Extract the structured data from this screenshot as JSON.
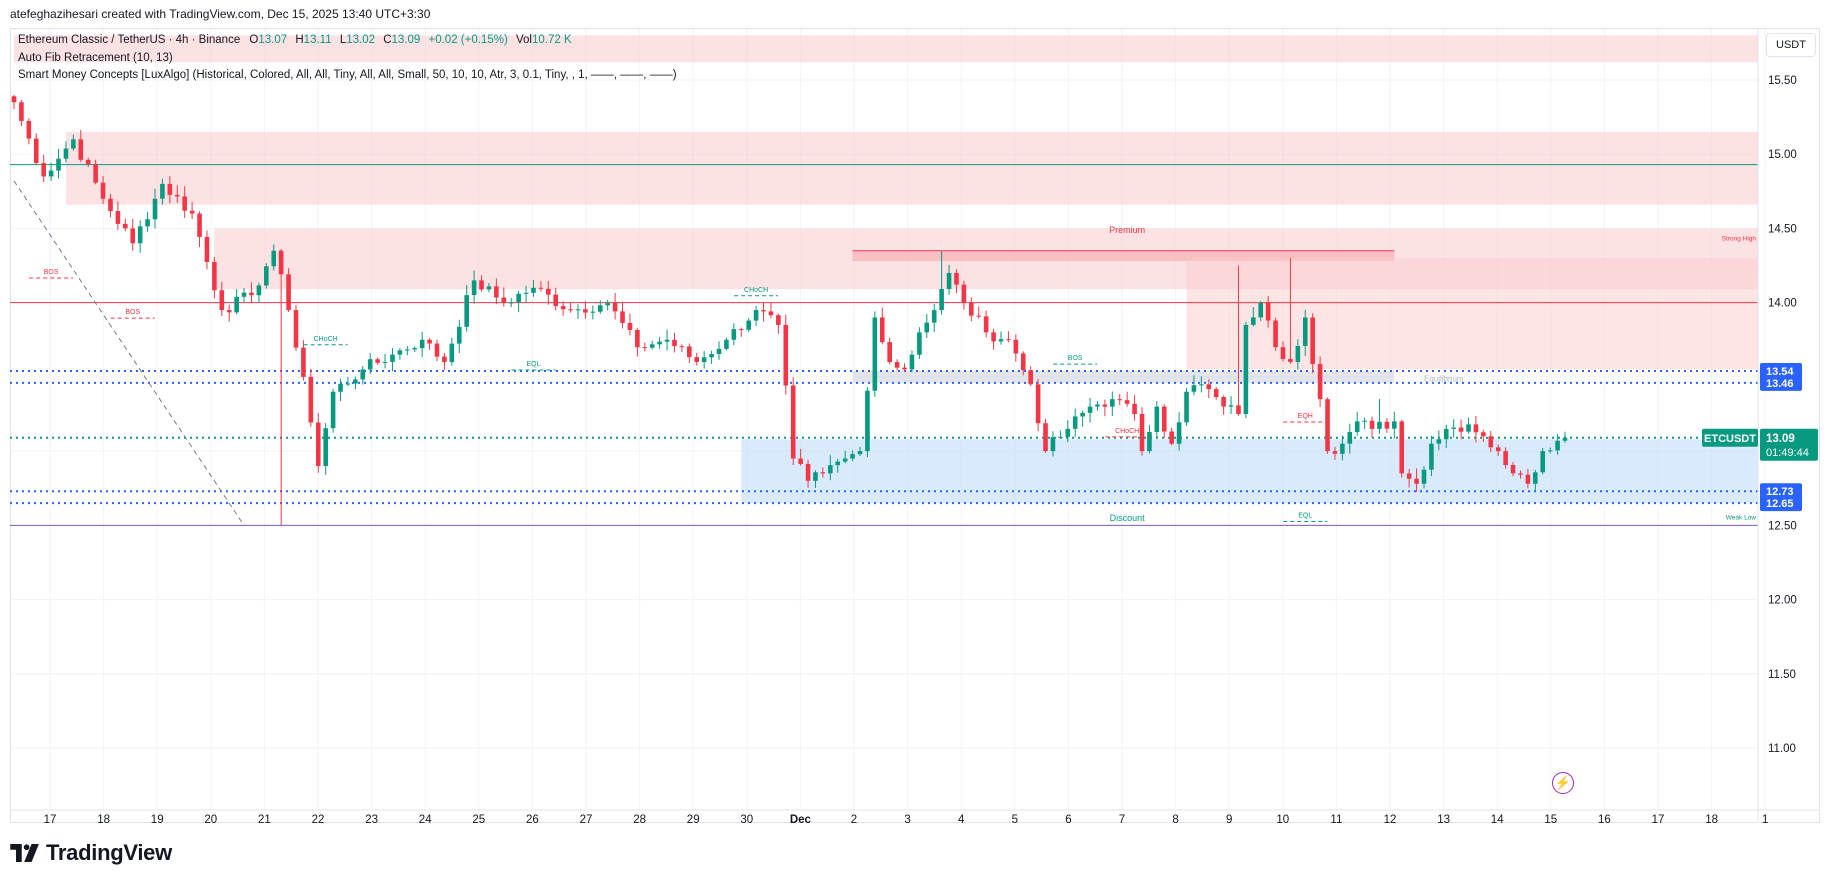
{
  "caption": "atefeghazihesari created with TradingView.com, Dec 15, 2025 13:40 UTC+3:30",
  "legend": {
    "symbol_line": "Ethereum Classic / TetherUS · 4h · Binance",
    "ohlc": {
      "O": "13.07",
      "H": "13.11",
      "L": "13.02",
      "C": "13.09",
      "change": "+0.02 (+0.15%)",
      "vol": "10.72 K"
    },
    "indicator_1": "Auto Fib Retracement (10, 13)",
    "indicator_2": "Smart Money Concepts [LuxAlgo] (Historical, Colored, All, All, Tiny, All, All, Small, 50, 10, 10, Atr, 3, 0.1, Tiny, , 1, ——, ——, ——)"
  },
  "currency": "USDT",
  "brand": "TradingView",
  "colors": {
    "up": "#089981",
    "down": "#f23645",
    "premium_zone": "#fccbcd",
    "discount_zone": "#bbd9fb",
    "grid": "#f0f3fa",
    "dotted_level": "#2962ff"
  },
  "price_badges": [
    {
      "label": "13.54",
      "color": "#2962ff"
    },
    {
      "label": "13.46",
      "color": "#2962ff"
    },
    {
      "label": "12.73",
      "color": "#2962ff"
    },
    {
      "label": "12.65",
      "color": "#2962ff"
    }
  ],
  "last_price": {
    "symbol": "ETCUSDT",
    "price": "13.09",
    "countdown": "01:49:44"
  },
  "annotations": {
    "premium": "Premium",
    "discount": "Discount",
    "equilibrium": "Equilibrium",
    "strong_high": "Strong High",
    "weak_low": "Weak Low",
    "bos": "BOS",
    "choch": "CHoCH",
    "eql": "EQL",
    "eqh": "EQH"
  },
  "chart_data": {
    "type": "candlestick",
    "timeframe": "4h",
    "ylim": [
      10.65,
      15.85
    ],
    "yticks": [
      11.0,
      11.5,
      12.0,
      12.5,
      13.0,
      13.5,
      14.0,
      14.5,
      15.0,
      15.5
    ],
    "xticks": [
      "17",
      "18",
      "19",
      "20",
      "21",
      "22",
      "23",
      "24",
      "25",
      "26",
      "27",
      "28",
      "29",
      "30",
      "Dec",
      "2",
      "3",
      "4",
      "5",
      "6",
      "7",
      "8",
      "9",
      "10",
      "11",
      "12",
      "13",
      "14",
      "15",
      "16",
      "17",
      "18",
      "1"
    ],
    "anchors": [
      {
        "t": 0,
        "p": 15.35
      },
      {
        "t": 4,
        "p": 14.85
      },
      {
        "t": 8,
        "p": 15.1
      },
      {
        "t": 12,
        "p": 14.7
      },
      {
        "t": 16,
        "p": 14.4
      },
      {
        "t": 20,
        "p": 14.8
      },
      {
        "t": 24,
        "p": 14.6
      },
      {
        "t": 28,
        "p": 13.95
      },
      {
        "t": 32,
        "p": 14.05
      },
      {
        "t": 35,
        "p": 14.35
      },
      {
        "t": 37,
        "p": 13.95
      },
      {
        "t": 39,
        "p": 13.5
      },
      {
        "t": 41,
        "p": 12.9
      },
      {
        "t": 43,
        "p": 13.4
      },
      {
        "t": 47,
        "p": 13.55
      },
      {
        "t": 51,
        "p": 13.65
      },
      {
        "t": 55,
        "p": 13.75
      },
      {
        "t": 58,
        "p": 13.6
      },
      {
        "t": 62,
        "p": 14.15
      },
      {
        "t": 66,
        "p": 14.0
      },
      {
        "t": 70,
        "p": 14.1
      },
      {
        "t": 75,
        "p": 13.95
      },
      {
        "t": 80,
        "p": 14.0
      },
      {
        "t": 84,
        "p": 13.7
      },
      {
        "t": 88,
        "p": 13.75
      },
      {
        "t": 92,
        "p": 13.6
      },
      {
        "t": 96,
        "p": 13.75
      },
      {
        "t": 100,
        "p": 13.95
      },
      {
        "t": 103,
        "p": 13.85
      },
      {
        "t": 105,
        "p": 12.95
      },
      {
        "t": 107,
        "p": 12.8
      },
      {
        "t": 109,
        "p": 12.85
      },
      {
        "t": 112,
        "p": 12.95
      },
      {
        "t": 114,
        "p": 13.0
      },
      {
        "t": 116,
        "p": 13.9
      },
      {
        "t": 118,
        "p": 13.6
      },
      {
        "t": 120,
        "p": 13.55
      },
      {
        "t": 122,
        "p": 13.8
      },
      {
        "t": 124,
        "p": 13.95
      },
      {
        "t": 126,
        "p": 14.2
      },
      {
        "t": 128,
        "p": 14.0
      },
      {
        "t": 131,
        "p": 13.8
      },
      {
        "t": 134,
        "p": 13.75
      },
      {
        "t": 137,
        "p": 13.45
      },
      {
        "t": 139,
        "p": 13.0
      },
      {
        "t": 142,
        "p": 13.15
      },
      {
        "t": 145,
        "p": 13.3
      },
      {
        "t": 148,
        "p": 13.35
      },
      {
        "t": 151,
        "p": 13.25
      },
      {
        "t": 152,
        "p": 13.0
      },
      {
        "t": 154,
        "p": 13.3
      },
      {
        "t": 156,
        "p": 13.05
      },
      {
        "t": 158,
        "p": 13.4
      },
      {
        "t": 160,
        "p": 13.45
      },
      {
        "t": 163,
        "p": 13.3
      },
      {
        "t": 165,
        "p": 13.25
      },
      {
        "t": 166,
        "p": 13.85
      },
      {
        "t": 168,
        "p": 14.0
      },
      {
        "t": 170,
        "p": 13.7
      },
      {
        "t": 172,
        "p": 13.6
      },
      {
        "t": 174,
        "p": 13.9
      },
      {
        "t": 176,
        "p": 13.35
      },
      {
        "t": 177,
        "p": 13.0
      },
      {
        "t": 179,
        "p": 13.05
      },
      {
        "t": 181,
        "p": 13.2
      },
      {
        "t": 183,
        "p": 13.15
      },
      {
        "t": 186,
        "p": 13.2
      },
      {
        "t": 187,
        "p": 12.85
      },
      {
        "t": 189,
        "p": 12.78
      },
      {
        "t": 191,
        "p": 13.05
      },
      {
        "t": 193,
        "p": 13.15
      },
      {
        "t": 196,
        "p": 13.18
      },
      {
        "t": 198,
        "p": 13.1
      },
      {
        "t": 200,
        "p": 13.0
      },
      {
        "t": 202,
        "p": 12.85
      },
      {
        "t": 204,
        "p": 12.78
      },
      {
        "t": 206,
        "p": 13.0
      },
      {
        "t": 208,
        "p": 13.07
      },
      {
        "t": 209,
        "p": 13.09
      }
    ],
    "wick_extremes": [
      {
        "t": 125,
        "p_high": 14.35
      },
      {
        "t": 165,
        "p_high": 14.25
      },
      {
        "t": 172,
        "p_high": 14.3
      },
      {
        "t": 36,
        "p_low": 12.5
      },
      {
        "t": 184,
        "p_high": 13.35
      }
    ],
    "zones": [
      {
        "name": "premium_top",
        "from_t": 0,
        "to_t": 209,
        "p_low": 15.62,
        "p_high": 15.8
      },
      {
        "name": "supply_upper",
        "from_t": 7,
        "to_t": 209,
        "p_low": 14.66,
        "p_high": 15.15
      },
      {
        "name": "supply_mid",
        "from_t": 27,
        "to_t": 209,
        "p_low": 14.09,
        "p_high": 14.5
      },
      {
        "name": "premium_box",
        "from_t": 113,
        "to_t": 186,
        "p_low": 14.28,
        "p_high": 14.35
      },
      {
        "name": "supply_right",
        "from_t": 158,
        "to_t": 209,
        "p_low": 13.55,
        "p_high": 14.3
      },
      {
        "name": "equilibrium",
        "from_t": 113,
        "to_t": 186,
        "p_low": 13.46,
        "p_high": 13.54
      },
      {
        "name": "discount",
        "from_t": 98,
        "to_t": 209,
        "p_low": 12.65,
        "p_high": 13.08
      }
    ],
    "levels": [
      {
        "p": 14.93,
        "color": "#089981",
        "style": "solid"
      },
      {
        "p": 14.0,
        "color": "#f23645",
        "style": "solid"
      },
      {
        "p": 13.54,
        "color": "#2962ff",
        "style": "dotted"
      },
      {
        "p": 13.46,
        "color": "#2962ff",
        "style": "dotted"
      },
      {
        "p": 13.09,
        "color": "#089981",
        "style": "dotted"
      },
      {
        "p": 12.73,
        "color": "#2962ff",
        "style": "dotted"
      },
      {
        "p": 12.65,
        "color": "#2962ff",
        "style": "dotted"
      },
      {
        "p": 12.5,
        "color": "#7e57c2",
        "style": "solid"
      },
      {
        "p": 14.35,
        "color": "#f23645",
        "style": "solid",
        "from_t": 113
      }
    ],
    "structure_labels": [
      {
        "key": "bos",
        "t": 5,
        "p": 14.22,
        "color": "#f23645"
      },
      {
        "key": "bos",
        "t": 16,
        "p": 13.95,
        "color": "#f23645"
      },
      {
        "key": "choch",
        "t": 42,
        "p": 13.77,
        "color": "#089981"
      },
      {
        "key": "eql",
        "t": 70,
        "p": 13.6,
        "color": "#089981"
      },
      {
        "key": "choch",
        "t": 100,
        "p": 14.1,
        "color": "#089981"
      },
      {
        "key": "bos",
        "t": 143,
        "p": 13.64,
        "color": "#089981"
      },
      {
        "key": "choch",
        "t": 150,
        "p": 13.15,
        "color": "#f23645"
      },
      {
        "key": "eqh",
        "t": 174,
        "p": 13.25,
        "color": "#f23645"
      },
      {
        "key": "eql",
        "t": 174,
        "p": 12.58,
        "color": "#089981"
      }
    ]
  }
}
